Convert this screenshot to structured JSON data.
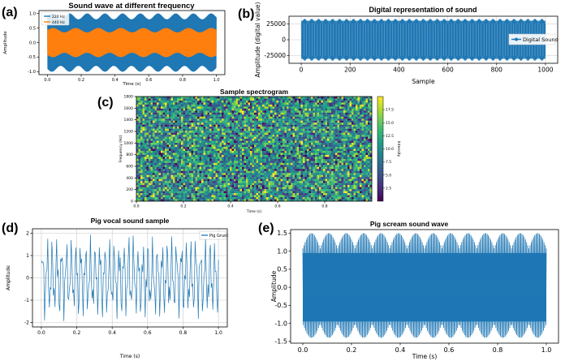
{
  "chart_data": [
    {
      "id": "a",
      "type": "line",
      "panel_label": "(a)",
      "title": "Sound wave at different frequency",
      "xlabel": "Time (s)",
      "ylabel": "Amplitude",
      "xlim": [
        -0.05,
        1.05
      ],
      "ylim": [
        -1.1,
        1.1
      ],
      "xticks": [
        0.0,
        0.2,
        0.4,
        0.6,
        0.8,
        1.0
      ],
      "xtick_labels": [
        "0.0",
        "0.2",
        "0.4",
        "0.6",
        "0.8",
        "1.0"
      ],
      "yticks": [
        -1.0,
        -0.5,
        0.0,
        0.5,
        1.0
      ],
      "ytick_labels": [
        "-1.0",
        "-0.5",
        "0.0",
        "0.5",
        "1.0"
      ],
      "legend_position": "top-left",
      "series": [
        {
          "name": "220 Hz",
          "color": "#1f77b4",
          "amplitude": 1.0,
          "frequency_hz": 220
        },
        {
          "name": "440 Hz",
          "color": "#ff7f0e",
          "amplitude": 0.5,
          "frequency_hz": 440
        }
      ]
    },
    {
      "id": "b",
      "type": "line",
      "panel_label": "(b)",
      "title": "Digital representation of sound",
      "xlabel": "Sample",
      "ylabel": "Amplitude (digital value)",
      "xlim": [
        -50,
        1050
      ],
      "ylim": [
        -37000,
        37000
      ],
      "xticks": [
        0,
        200,
        400,
        600,
        800,
        1000
      ],
      "xtick_labels": [
        "0",
        "200",
        "400",
        "600",
        "800",
        "1000"
      ],
      "yticks": [
        -25000,
        0,
        25000
      ],
      "ytick_labels": [
        "-25000",
        "0",
        "25000"
      ],
      "legend_position": "right",
      "series": [
        {
          "name": "Digital Sound",
          "color": "#1f77b4",
          "marker": "o",
          "min": -32768,
          "max": 32767,
          "n_samples": 1000
        }
      ]
    },
    {
      "id": "c",
      "type": "heatmap",
      "panel_label": "(c)",
      "title": "Sample spectrogram",
      "xlabel": "Time (s)",
      "ylabel": "Frequency (Hz)",
      "colorbar_label": "Intensity",
      "colormap": "viridis",
      "xlim": [
        0.0,
        1.0
      ],
      "ylim": [
        0,
        1800
      ],
      "xticks": [
        0.0,
        0.2,
        0.4,
        0.6,
        0.8
      ],
      "xtick_labels": [
        "0.0",
        "0.2",
        "0.4",
        "0.6",
        "0.8"
      ],
      "yticks": [
        0,
        200,
        400,
        600,
        800,
        1000,
        1200,
        1400,
        1600,
        1800
      ],
      "ytick_labels": [
        "0",
        "200",
        "400",
        "600",
        "800",
        "1000",
        "1200",
        "1400",
        "1600",
        "1800"
      ],
      "color_range": [
        0,
        20
      ],
      "colorbar_ticks": [
        2.5,
        5.0,
        7.5,
        10.0,
        12.5,
        15.0,
        17.5
      ],
      "colorbar_tick_labels": [
        "2.5",
        "5.0",
        "7.5",
        "10.0",
        "12.5",
        "15.0",
        "17.5"
      ]
    },
    {
      "id": "d",
      "type": "line",
      "panel_label": "(d)",
      "title": "Pig vocal sound sample",
      "xlabel": "Time (s)",
      "ylabel": "Amplitude",
      "xlim": [
        -0.05,
        1.05
      ],
      "ylim": [
        -2.2,
        2.2
      ],
      "xticks": [
        0.0,
        0.2,
        0.4,
        0.6,
        0.8,
        1.0
      ],
      "xtick_labels": [
        "0.0",
        "0.2",
        "0.4",
        "0.6",
        "0.8",
        "1.0"
      ],
      "yticks": [
        -2,
        -1,
        0,
        1,
        2
      ],
      "ytick_labels": [
        "-2",
        "-1",
        "0",
        "1",
        "2"
      ],
      "grid": true,
      "legend_position": "top-right",
      "series": [
        {
          "name": "Pig Grunt",
          "color": "#1f77b4",
          "min": -2.0,
          "max": 2.0
        }
      ]
    },
    {
      "id": "e",
      "type": "line",
      "panel_label": "(e)",
      "title": "Pig scream sound wave",
      "xlabel": "Time (s)",
      "ylabel": "Amplitude",
      "xlim": [
        -0.05,
        1.05
      ],
      "ylim": [
        -1.55,
        1.6
      ],
      "xticks": [
        0.0,
        0.2,
        0.4,
        0.6,
        0.8,
        1.0
      ],
      "xtick_labels": [
        "0.0",
        "0.2",
        "0.4",
        "0.6",
        "0.8",
        "1.0"
      ],
      "yticks": [
        -1.5,
        -1.0,
        -0.5,
        0.0,
        0.5,
        1.0,
        1.5
      ],
      "ytick_labels": [
        "-1.5",
        "-1.0",
        "-0.5",
        "0.0",
        "0.5",
        "1.0",
        "1.5"
      ],
      "series": [
        {
          "name": "Pig scream",
          "color": "#1f77b4",
          "min": -1.4,
          "max": 1.5
        }
      ]
    }
  ]
}
